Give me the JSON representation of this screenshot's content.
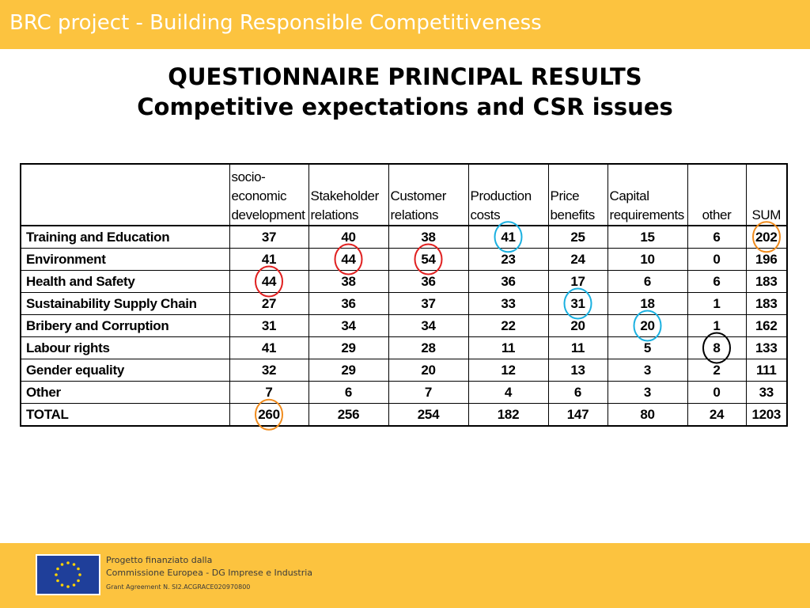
{
  "header": {
    "title": "BRC project - Building Responsible Competitiveness"
  },
  "heading": {
    "line1": "QUESTIONNAIRE PRINCIPAL RESULTS",
    "line2": "Competitive expectations and CSR issues"
  },
  "table": {
    "columns": [
      [
        "socio-",
        "economic",
        "development"
      ],
      [
        "Stakeholder",
        "relations"
      ],
      [
        "Customer",
        "relations"
      ],
      [
        "Production",
        "costs"
      ],
      [
        "Price",
        "benefits"
      ],
      [
        "Capital",
        "requirements"
      ],
      [
        "other"
      ],
      [
        "SUM"
      ]
    ],
    "rows": [
      {
        "label": "Training and Education",
        "values": [
          "37",
          "40",
          "38",
          "41",
          "25",
          "15",
          "6",
          "202"
        ]
      },
      {
        "label": "Environment",
        "values": [
          "41",
          "44",
          "54",
          "23",
          "24",
          "10",
          "0",
          "196"
        ]
      },
      {
        "label": "Health and Safety",
        "values": [
          "44",
          "38",
          "36",
          "36",
          "17",
          "6",
          "6",
          "183"
        ]
      },
      {
        "label": "Sustainability Supply Chain",
        "values": [
          "27",
          "36",
          "37",
          "33",
          "31",
          "18",
          "1",
          "183"
        ]
      },
      {
        "label": "Bribery and Corruption",
        "values": [
          "31",
          "34",
          "34",
          "22",
          "20",
          "20",
          "1",
          "162"
        ]
      },
      {
        "label": "Labour rights",
        "values": [
          "41",
          "29",
          "28",
          "11",
          "11",
          "5",
          "8",
          "133"
        ]
      },
      {
        "label": "Gender equality",
        "values": [
          "32",
          "29",
          "20",
          "12",
          "13",
          "3",
          "2",
          "111"
        ]
      },
      {
        "label": "Other",
        "values": [
          "7",
          "6",
          "7",
          "4",
          "6",
          "3",
          "0",
          "33"
        ]
      },
      {
        "label": "TOTAL",
        "values": [
          "260",
          "256",
          "254",
          "182",
          "147",
          "80",
          "24",
          "1203"
        ]
      }
    ]
  },
  "highlights": [
    {
      "row": 0,
      "col": 3,
      "color": "#1ab0e0"
    },
    {
      "row": 0,
      "col": 7,
      "color": "#f08c1e"
    },
    {
      "row": 1,
      "col": 1,
      "color": "#e02020"
    },
    {
      "row": 1,
      "col": 2,
      "color": "#e02020"
    },
    {
      "row": 2,
      "col": 0,
      "color": "#e02020"
    },
    {
      "row": 3,
      "col": 4,
      "color": "#1ab0e0"
    },
    {
      "row": 4,
      "col": 5,
      "color": "#1ab0e0"
    },
    {
      "row": 5,
      "col": 6,
      "color": "#000000"
    },
    {
      "row": 8,
      "col": 0,
      "color": "#f08c1e"
    }
  ],
  "footer": {
    "line1": "Progetto finanziato dalla",
    "line2": "Commissione Europea - DG Imprese e Industria",
    "line3": "Grant Agreement N. SI2.ACGRACE020970800",
    "flag_icon": "eu-flag-icon"
  }
}
